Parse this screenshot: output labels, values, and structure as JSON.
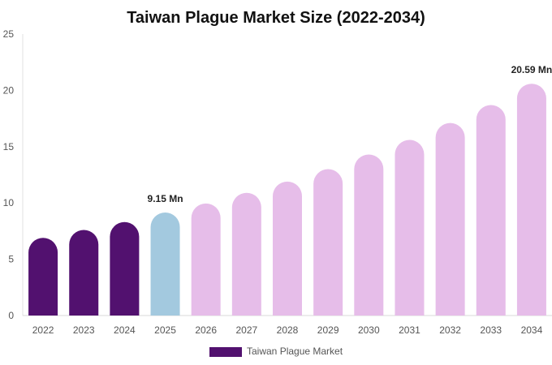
{
  "chart_data": {
    "type": "bar",
    "title": "Taiwan Plague Market Size (2022-2034)",
    "xlabel": "",
    "ylabel": "",
    "categories": [
      "2022",
      "2023",
      "2024",
      "2025",
      "2026",
      "2027",
      "2028",
      "2029",
      "2030",
      "2031",
      "2032",
      "2033",
      "2034"
    ],
    "series": [
      {
        "name": "Taiwan Plague Market",
        "values": [
          6.9,
          7.6,
          8.3,
          9.15,
          9.95,
          10.9,
          11.9,
          13.0,
          14.3,
          15.6,
          17.1,
          18.7,
          20.59
        ]
      }
    ],
    "bar_colors": [
      "#52116f",
      "#52116f",
      "#52116f",
      "#a3c9df",
      "#e6bde9",
      "#e6bde9",
      "#e6bde9",
      "#e6bde9",
      "#e6bde9",
      "#e6bde9",
      "#e6bde9",
      "#e6bde9",
      "#e6bde9"
    ],
    "legend_color": "#52116f",
    "yticks": [
      "0",
      "5",
      "10",
      "15",
      "20",
      "25"
    ],
    "ylim": [
      0,
      25
    ],
    "data_labels": [
      {
        "index": 3,
        "text": "9.15 Mn"
      },
      {
        "index": 12,
        "text": "20.59 Mn"
      }
    ],
    "grid": false,
    "legend_position": "bottom-center"
  }
}
